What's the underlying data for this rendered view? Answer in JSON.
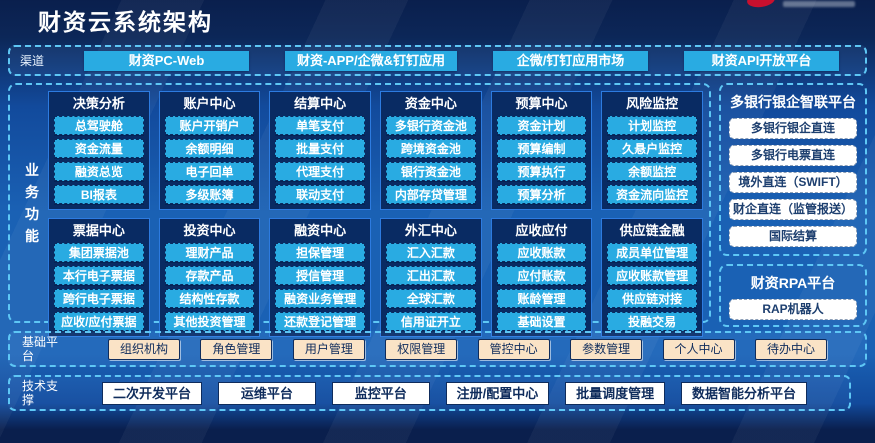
{
  "header": {
    "title": "财资云系统架构"
  },
  "channels": {
    "label": "渠道",
    "items": [
      "财资PC-Web",
      "财资-APP/企微&钉钉应用",
      "企微/钉钉应用市场",
      "财资API开放平台"
    ]
  },
  "business": {
    "label": "业务功能",
    "columns": [
      {
        "title": "决策分析",
        "items": [
          "总驾驶舱",
          "资金流量",
          "融资总览",
          "BI报表"
        ]
      },
      {
        "title": "账户中心",
        "items": [
          "账户开销户",
          "余额明细",
          "电子回单",
          "多级账簿"
        ]
      },
      {
        "title": "结算中心",
        "items": [
          "单笔支付",
          "批量支付",
          "代理支付",
          "联动支付"
        ]
      },
      {
        "title": "资金中心",
        "items": [
          "多银行资金池",
          "跨境资金池",
          "银行资金池",
          "内部存贷管理"
        ]
      },
      {
        "title": "预算中心",
        "items": [
          "资金计划",
          "预算编制",
          "预算执行",
          "预算分析"
        ]
      },
      {
        "title": "风险监控",
        "items": [
          "计划监控",
          "久悬户监控",
          "余额监控",
          "资金流向监控"
        ]
      },
      {
        "title": "票据中心",
        "items": [
          "集团票据池",
          "本行电子票据",
          "跨行电子票据",
          "应收/应付票据"
        ]
      },
      {
        "title": "投资中心",
        "items": [
          "理财产品",
          "存款产品",
          "结构性存款",
          "其他投资管理"
        ]
      },
      {
        "title": "融资中心",
        "items": [
          "担保管理",
          "授信管理",
          "融资业务管理",
          "还款登记管理"
        ]
      },
      {
        "title": "外汇中心",
        "items": [
          "汇入汇款",
          "汇出汇款",
          "全球汇款",
          "信用证开立"
        ]
      },
      {
        "title": "应收应付",
        "items": [
          "应收账款",
          "应付账款",
          "账龄管理",
          "基础设置"
        ]
      },
      {
        "title": "供应链金融",
        "items": [
          "成员单位管理",
          "应收账款管理",
          "供应链对接",
          "投融交易"
        ]
      }
    ]
  },
  "side": {
    "bank_platform": {
      "title": "多银行银企智联平台",
      "items": [
        "多银行银企直连",
        "多银行电票直连",
        "境外直连（SWIFT）",
        "财企直连（监管报送）",
        "国际结算"
      ]
    },
    "rpa_platform": {
      "title": "财资RPA平台",
      "items": [
        "RAP机器人"
      ]
    }
  },
  "base_platform": {
    "label": "基础平台",
    "items": [
      "组织机构",
      "角色管理",
      "用户管理",
      "权限管理",
      "管控中心",
      "参数管理",
      "个人中心",
      "待办中心"
    ]
  },
  "tech_support": {
    "label": "技术支撑",
    "items": [
      "二次开发平台",
      "运维平台",
      "监控平台",
      "注册/配置中心",
      "批量调度管理",
      "数据智能分析平台"
    ]
  },
  "colors": {
    "accent_cyan": "#29abe2",
    "dashed_border": "#5ec7f5",
    "panel_navy": "#092b63",
    "background_blue": "#1a61b4",
    "header_navy": "#0a1f4d",
    "peach_box": "#fae3c6",
    "logo_red": "#c8102e"
  }
}
